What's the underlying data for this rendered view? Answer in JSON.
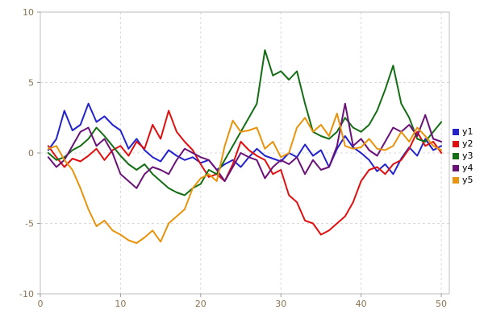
{
  "figure": {
    "background": "#ffffff"
  },
  "style": {
    "tick_label_color": "#8a7250",
    "grid_color": "#d9d9d9",
    "border_color": "#bdbdbd",
    "tick_mark_color": "#9a9a9a",
    "legend_text_color": "#000000",
    "line_width": 2
  },
  "chart_data": {
    "type": "line",
    "title": "",
    "xlabel": "",
    "ylabel": "",
    "xlim": [
      0,
      51
    ],
    "ylim": [
      -10,
      10
    ],
    "xticks": [
      0,
      10,
      20,
      30,
      40,
      50
    ],
    "yticks": [
      -10,
      -5,
      0,
      5,
      10
    ],
    "grid": "dashed",
    "legend_position": "right",
    "x": [
      1,
      2,
      3,
      4,
      5,
      6,
      7,
      8,
      9,
      10,
      11,
      12,
      13,
      14,
      15,
      16,
      17,
      18,
      19,
      20,
      21,
      22,
      23,
      24,
      25,
      26,
      27,
      28,
      29,
      30,
      31,
      32,
      33,
      34,
      35,
      36,
      37,
      38,
      39,
      40,
      41,
      42,
      43,
      44,
      45,
      46,
      47,
      48,
      49,
      50
    ],
    "series": [
      {
        "name": "y1",
        "color": "#2323cc",
        "values": [
          0.2,
          1.0,
          3.0,
          1.6,
          2.0,
          3.5,
          2.2,
          2.6,
          2.0,
          1.6,
          0.3,
          1.0,
          0.2,
          -0.3,
          -0.6,
          0.2,
          -0.2,
          -0.5,
          -0.3,
          -0.7,
          -0.5,
          -1.2,
          -0.8,
          -0.5,
          -1.0,
          -0.3,
          0.3,
          -0.2,
          -0.4,
          -0.6,
          0.0,
          -0.3,
          0.6,
          -0.2,
          0.2,
          -1.0,
          0.3,
          1.2,
          0.4,
          0.0,
          -0.5,
          -1.3,
          -0.8,
          -1.5,
          -0.4,
          0.4,
          -0.2,
          1.0,
          0.2,
          0.5
        ]
      },
      {
        "name": "y2",
        "color": "#e01010",
        "values": [
          0.5,
          -0.3,
          -1.0,
          -0.4,
          -0.6,
          -0.2,
          0.3,
          -0.5,
          0.2,
          0.5,
          -0.2,
          0.8,
          0.3,
          2.0,
          1.0,
          3.0,
          1.5,
          0.8,
          0.2,
          -0.8,
          -1.7,
          -1.5,
          -2.0,
          -0.8,
          0.8,
          0.2,
          -0.2,
          -0.5,
          -1.5,
          -1.2,
          -3.0,
          -3.5,
          -4.8,
          -5.0,
          -5.8,
          -5.5,
          -5.0,
          -4.5,
          -3.5,
          -2.0,
          -1.2,
          -1.0,
          -1.5,
          -0.8,
          -0.5,
          0.3,
          1.5,
          0.5,
          0.8,
          0.0
        ]
      },
      {
        "name": "y3",
        "color": "#146e14",
        "values": [
          0.0,
          -0.5,
          -0.3,
          0.2,
          0.5,
          1.0,
          1.8,
          1.2,
          0.5,
          -0.2,
          -0.8,
          -1.2,
          -0.8,
          -1.5,
          -2.0,
          -2.5,
          -2.8,
          -3.0,
          -2.5,
          -2.2,
          -1.2,
          -1.5,
          -0.5,
          0.5,
          1.5,
          2.5,
          3.5,
          7.3,
          5.5,
          5.8,
          5.2,
          5.8,
          3.5,
          1.5,
          1.2,
          1.0,
          1.5,
          2.5,
          1.8,
          1.5,
          2.0,
          3.0,
          4.5,
          6.2,
          3.5,
          2.5,
          1.0,
          0.8,
          1.5,
          2.2
        ]
      },
      {
        "name": "y4",
        "color": "#6a1278",
        "values": [
          -0.3,
          -1.0,
          -0.5,
          0.5,
          1.5,
          1.8,
          0.5,
          1.0,
          0.0,
          -1.5,
          -2.0,
          -2.5,
          -1.5,
          -1.0,
          -1.2,
          -1.5,
          -0.5,
          0.3,
          0.0,
          -0.3,
          -0.5,
          -1.2,
          -2.0,
          -1.0,
          0.0,
          -0.3,
          -0.5,
          -1.8,
          -1.0,
          -0.5,
          -0.8,
          -0.3,
          -1.5,
          -0.5,
          -1.2,
          -1.0,
          0.5,
          3.5,
          0.5,
          1.0,
          0.2,
          -0.2,
          0.8,
          1.8,
          1.5,
          2.0,
          1.2,
          2.7,
          1.0,
          0.8
        ]
      },
      {
        "name": "y5",
        "color": "#e8930c",
        "values": [
          0.3,
          0.5,
          -0.5,
          -1.2,
          -2.5,
          -4.0,
          -5.2,
          -4.8,
          -5.5,
          -5.8,
          -6.2,
          -6.4,
          -6.0,
          -5.5,
          -6.3,
          -5.0,
          -4.5,
          -4.0,
          -2.5,
          -1.8,
          -1.5,
          -2.0,
          0.5,
          2.3,
          1.5,
          1.6,
          1.8,
          0.3,
          0.8,
          -0.3,
          0.0,
          1.8,
          2.5,
          1.5,
          2.0,
          1.2,
          2.8,
          0.5,
          0.3,
          0.4,
          1.0,
          0.3,
          0.2,
          0.5,
          1.5,
          0.8,
          1.8,
          1.2,
          0.5,
          0.2
        ]
      }
    ]
  }
}
